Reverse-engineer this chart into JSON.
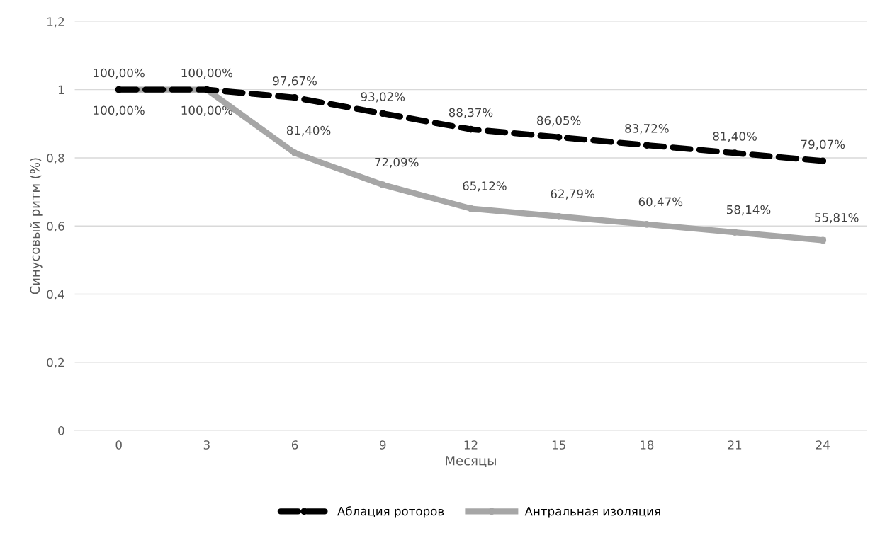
{
  "chart_data": {
    "type": "line",
    "xlabel": "Месяцы",
    "ylabel": "Синусовый ритм (%)",
    "categories": [
      "0",
      "3",
      "6",
      "9",
      "12",
      "15",
      "18",
      "21",
      "24"
    ],
    "ylim": [
      0,
      1.2
    ],
    "yticks": [
      {
        "value": 0,
        "label": "0"
      },
      {
        "value": 0.2,
        "label": "0,2"
      },
      {
        "value": 0.4,
        "label": "0,4"
      },
      {
        "value": 0.6,
        "label": "0,6"
      },
      {
        "value": 0.8,
        "label": "0,8"
      },
      {
        "value": 1,
        "label": "1"
      },
      {
        "value": 1.2,
        "label": "1,2"
      }
    ],
    "grid": "y",
    "legend": "bottom",
    "marker": "circle",
    "series": [
      {
        "name": "Аблация роторов",
        "color": "#000000",
        "line_style": "dashed",
        "values": [
          1.0,
          1.0,
          0.9767,
          0.9302,
          0.8837,
          0.8605,
          0.8372,
          0.814,
          0.7907
        ],
        "value_labels": [
          "100,00%",
          "100,00%",
          "97,67%",
          "93,02%",
          "88,37%",
          "86,05%",
          "83,72%",
          "81,40%",
          "79,07%"
        ]
      },
      {
        "name": "Антральная изоляция",
        "color": "#a6a6a6",
        "line_style": "solid",
        "values": [
          1.0,
          1.0,
          0.814,
          0.7209,
          0.6512,
          0.6279,
          0.6047,
          0.5814,
          0.5581
        ],
        "value_labels": [
          "100,00%",
          "100,00%",
          "81,40%",
          "72,09%",
          "65,12%",
          "62,79%",
          "60,47%",
          "58,14%",
          "55,81%"
        ]
      }
    ]
  }
}
